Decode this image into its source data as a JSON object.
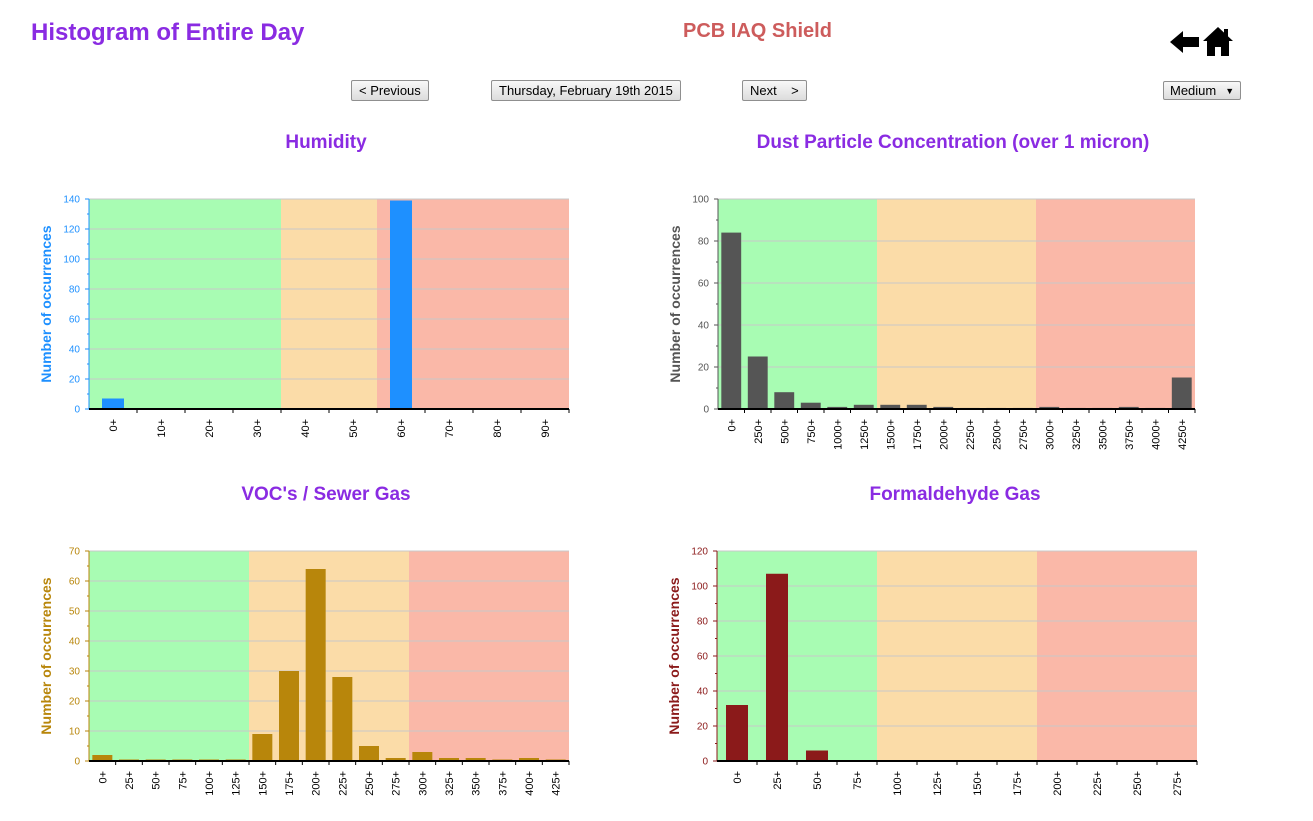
{
  "header": {
    "page_title": "Histogram of Entire Day",
    "site_title": "PCB IAQ Shield",
    "back_icon": "left-arrow-icon",
    "home_icon": "home-icon"
  },
  "toolbar": {
    "previous_label": "< Previous",
    "date_label": "Thursday, February 19th 2015",
    "next_label": "Next    >",
    "size_select": {
      "selected": "Medium",
      "arrow": "▼"
    }
  },
  "zone_colors": {
    "green": "#a8fcb3",
    "orange": "#fbdca8",
    "red": "#fab8a8"
  },
  "chart_data": [
    {
      "type": "bar",
      "title": "Humidity",
      "ylabel": "Number of occurrences",
      "xlabel": "",
      "categories": [
        "0+",
        "10+",
        "20+",
        "30+",
        "40+",
        "50+",
        "60+",
        "70+",
        "80+",
        "90+"
      ],
      "values": [
        7,
        0.5,
        0.5,
        0.5,
        0.5,
        0.5,
        139,
        0.5,
        0.5,
        0.5
      ],
      "ylim": [
        0,
        140
      ],
      "ytick_step": 20,
      "color": "#1e90ff",
      "axis_color": "#1e90ff",
      "zones": [
        {
          "color": "green",
          "from": 0,
          "to": 4
        },
        {
          "color": "orange",
          "from": 4,
          "to": 6
        },
        {
          "color": "red",
          "from": 6,
          "to": 10
        }
      ],
      "grid": true
    },
    {
      "type": "bar",
      "title": "Dust Particle Concentration (over 1 micron)",
      "ylabel": "Number of occurrences",
      "xlabel": "",
      "categories": [
        "0+",
        "250+",
        "500+",
        "750+",
        "1000+",
        "1250+",
        "1500+",
        "1750+",
        "2000+",
        "2250+",
        "2500+",
        "2750+",
        "3000+",
        "3250+",
        "3500+",
        "3750+",
        "4000+",
        "4250+"
      ],
      "values": [
        84,
        25,
        8,
        3,
        1,
        2,
        2,
        2,
        1,
        0.5,
        0.5,
        0.5,
        1,
        0.5,
        0.5,
        1,
        0.5,
        15
      ],
      "ylim": [
        0,
        100
      ],
      "ytick_step": 20,
      "color": "#555555",
      "axis_color": "#555555",
      "zones": [
        {
          "color": "green",
          "from": 0,
          "to": 6
        },
        {
          "color": "orange",
          "from": 6,
          "to": 12
        },
        {
          "color": "red",
          "from": 12,
          "to": 18
        }
      ],
      "grid": true
    },
    {
      "type": "bar",
      "title": "VOC's / Sewer Gas",
      "ylabel": "Number of occurrences",
      "xlabel": "",
      "categories": [
        "0+",
        "25+",
        "50+",
        "75+",
        "100+",
        "125+",
        "150+",
        "175+",
        "200+",
        "225+",
        "250+",
        "275+",
        "300+",
        "325+",
        "350+",
        "375+",
        "400+",
        "425+"
      ],
      "values": [
        2,
        0.5,
        0.5,
        0.5,
        0.5,
        0.5,
        9,
        30,
        64,
        28,
        5,
        1,
        3,
        1,
        1,
        0.5,
        1,
        0.5
      ],
      "ylim": [
        0,
        70
      ],
      "ytick_step": 10,
      "color": "#b8860b",
      "axis_color": "#b8860b",
      "zones": [
        {
          "color": "green",
          "from": 0,
          "to": 6
        },
        {
          "color": "orange",
          "from": 6,
          "to": 12
        },
        {
          "color": "red",
          "from": 12,
          "to": 18
        }
      ],
      "grid": true
    },
    {
      "type": "bar",
      "title": "Formaldehyde Gas",
      "ylabel": "Number of occurrences",
      "xlabel": "",
      "categories": [
        "0+",
        "25+",
        "50+",
        "75+",
        "100+",
        "125+",
        "150+",
        "175+",
        "200+",
        "225+",
        "250+",
        "275+"
      ],
      "values": [
        32,
        107,
        6,
        0.5,
        0.5,
        0.5,
        0.5,
        0.5,
        0.5,
        0.5,
        0.5,
        0.5
      ],
      "ylim": [
        0,
        120
      ],
      "ytick_step": 20,
      "color": "#8b1a1a",
      "axis_color": "#8b1a1a",
      "zones": [
        {
          "color": "green",
          "from": 0,
          "to": 4
        },
        {
          "color": "orange",
          "from": 4,
          "to": 8
        },
        {
          "color": "red",
          "from": 8,
          "to": 12
        }
      ],
      "grid": true
    }
  ]
}
